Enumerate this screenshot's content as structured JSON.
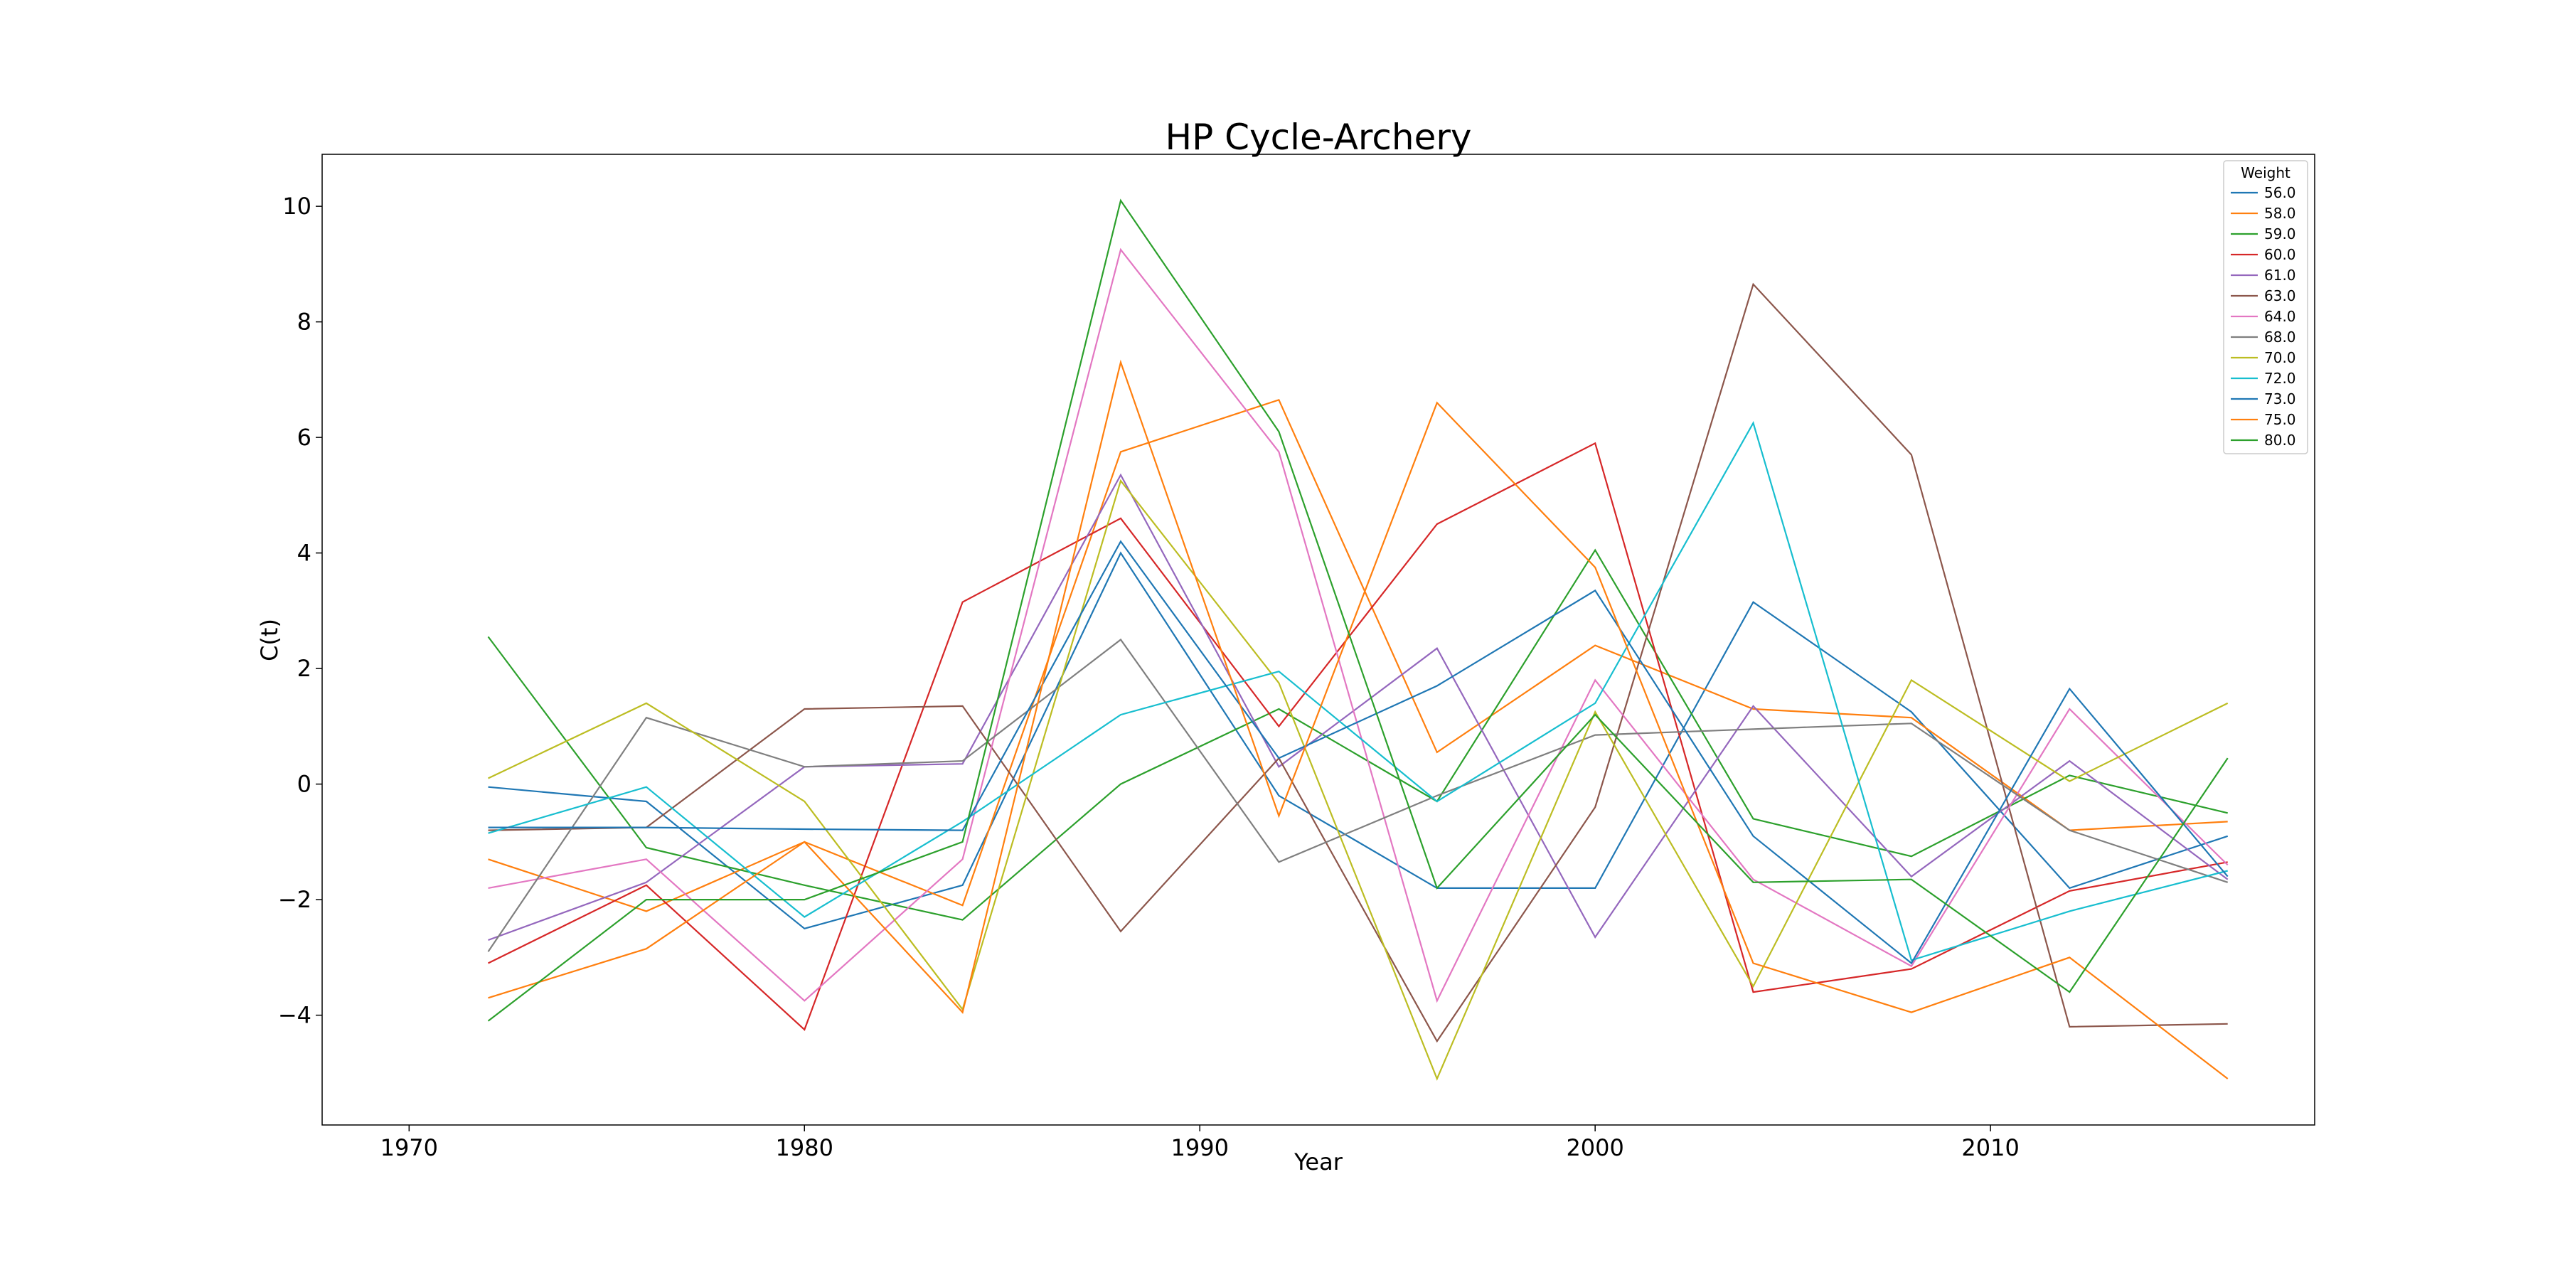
{
  "chart_data": {
    "type": "line",
    "title": "HP Cycle-Archery",
    "xlabel": "Year",
    "ylabel": "C(t)",
    "xlim": [
      1967.8,
      2018.2
    ],
    "ylim": [
      -5.9,
      10.9
    ],
    "xticks": [
      1970,
      1980,
      1990,
      2000,
      2010
    ],
    "yticks": [
      -4,
      -2,
      0,
      2,
      4,
      6,
      8,
      10
    ],
    "grid": false,
    "legend": {
      "title": "Weight",
      "placement": "top-right"
    },
    "x": [
      1972,
      1976,
      1980,
      1984,
      1988,
      1992,
      1996,
      2000,
      2004,
      2008,
      2012,
      2016
    ],
    "series": [
      {
        "name": "56.0",
        "color": "#1f77b4",
        "values": [
          -0.05,
          -0.3,
          -2.5,
          -1.75,
          4.0,
          -0.2,
          -1.8,
          -1.8,
          3.15,
          1.25,
          -1.8,
          -0.9
        ]
      },
      {
        "name": "58.0",
        "color": "#ff7f0e",
        "values": [
          -1.3,
          -2.2,
          -1.0,
          -2.1,
          5.75,
          6.65,
          0.55,
          2.4,
          1.3,
          1.15,
          -0.8,
          -0.65
        ]
      },
      {
        "name": "59.0",
        "color": "#2ca02c",
        "values": [
          2.55,
          -1.1,
          -1.75,
          -2.35,
          0.0,
          1.3,
          -0.3,
          4.05,
          -0.6,
          -1.25,
          0.15,
          -0.5
        ]
      },
      {
        "name": "60.0",
        "color": "#d62728",
        "values": [
          -3.1,
          -1.75,
          -4.25,
          3.15,
          4.6,
          1.0,
          4.5,
          5.9,
          -3.6,
          -3.2,
          -1.85,
          -1.35
        ]
      },
      {
        "name": "61.0",
        "color": "#9467bd",
        "values": [
          -2.7,
          -1.7,
          0.3,
          0.35,
          5.35,
          0.3,
          2.35,
          -2.65,
          1.35,
          -1.6,
          0.4,
          -1.65
        ]
      },
      {
        "name": "63.0",
        "color": "#8c564b",
        "values": [
          -0.8,
          -0.75,
          1.3,
          1.35,
          -2.55,
          0.45,
          -4.45,
          -0.4,
          8.65,
          5.7,
          -4.2,
          -4.15
        ]
      },
      {
        "name": "64.0",
        "color": "#e377c2",
        "values": [
          -1.8,
          -1.3,
          -3.75,
          -1.3,
          9.25,
          5.75,
          -3.75,
          1.8,
          -1.65,
          -3.15,
          1.3,
          -1.4
        ]
      },
      {
        "name": "68.0",
        "color": "#7f7f7f",
        "values": [
          -2.9,
          1.15,
          0.3,
          0.4,
          2.5,
          -1.35,
          -0.2,
          0.85,
          0.95,
          1.05,
          -0.8,
          -1.7
        ]
      },
      {
        "name": "70.0",
        "color": "#bcbd22",
        "values": [
          0.1,
          1.4,
          -0.3,
          -3.9,
          5.25,
          1.75,
          -5.1,
          1.25,
          -3.5,
          1.8,
          0.05,
          1.4
        ]
      },
      {
        "name": "72.0",
        "color": "#17becf",
        "values": [
          -0.85,
          -0.05,
          -2.3,
          -0.65,
          1.2,
          1.95,
          -0.3,
          1.4,
          6.25,
          -3.05,
          -2.2,
          -1.5
        ]
      },
      {
        "name": "73.0",
        "color": "#1f77b4",
        "values": [
          -0.75,
          -0.75,
          -0.78,
          -0.8,
          4.2,
          0.45,
          1.7,
          3.35,
          -0.9,
          -3.1,
          1.65,
          -1.6
        ]
      },
      {
        "name": "75.0",
        "color": "#ff7f0e",
        "values": [
          -3.7,
          -2.85,
          -1.0,
          -3.95,
          7.3,
          -0.55,
          6.6,
          3.75,
          -3.1,
          -3.95,
          -3.0,
          -5.1
        ]
      },
      {
        "name": "80.0",
        "color": "#2ca02c",
        "values": [
          -4.1,
          -2.0,
          -2.0,
          -1.0,
          10.1,
          6.1,
          -1.8,
          1.2,
          -1.7,
          -1.65,
          -3.6,
          0.45
        ]
      }
    ]
  }
}
